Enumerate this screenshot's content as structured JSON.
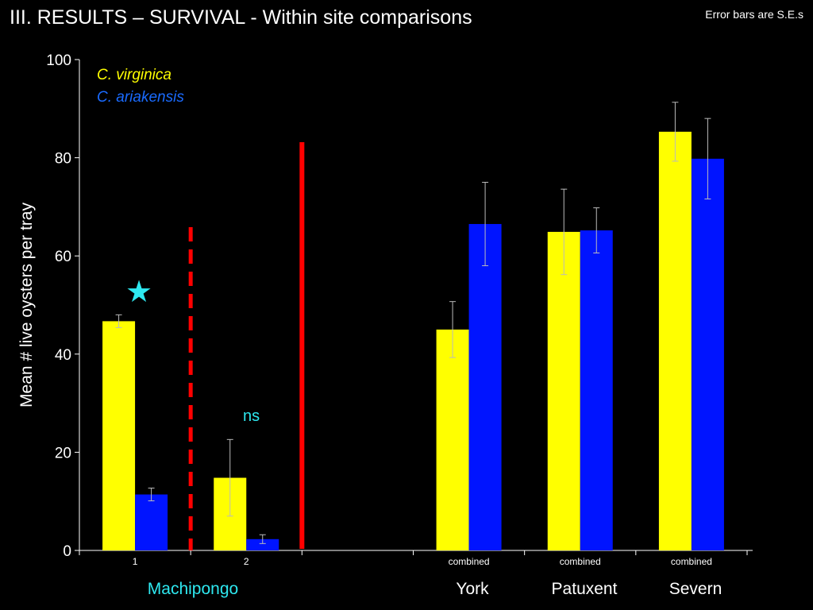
{
  "title": "III.  RESULTS –  SURVIVAL - Within site comparisons",
  "note": "Error bars are S.E.s",
  "colors": {
    "virginica": "#ffff00",
    "ariakensis": "#0014ff",
    "accent": "#2ee8f0",
    "divider": "#ff0000"
  },
  "annotations": {
    "star": "★",
    "ns": "ns"
  },
  "chart_data": {
    "type": "bar",
    "ylabel": "Mean # live oysters per tray",
    "ylim": [
      0,
      100
    ],
    "yticks": [
      0,
      20,
      40,
      60,
      80,
      100
    ],
    "categories": [
      "1",
      "2",
      "",
      "combined",
      "combined",
      "combined"
    ],
    "series": [
      {
        "name": "C. virginica",
        "values": [
          46.7,
          14.8,
          null,
          45.0,
          64.9,
          85.3
        ],
        "errors": [
          1.3,
          7.8,
          null,
          5.7,
          8.7,
          6.0
        ]
      },
      {
        "name": "C. ariakensis",
        "values": [
          11.4,
          2.3,
          null,
          66.5,
          65.2,
          79.8
        ],
        "errors": [
          1.3,
          0.9,
          null,
          8.5,
          4.6,
          8.2
        ]
      }
    ],
    "site_labels": [
      "Machipongo",
      "York",
      "Patuxent",
      "Severn"
    ],
    "grid": false,
    "legend": "top-left"
  }
}
